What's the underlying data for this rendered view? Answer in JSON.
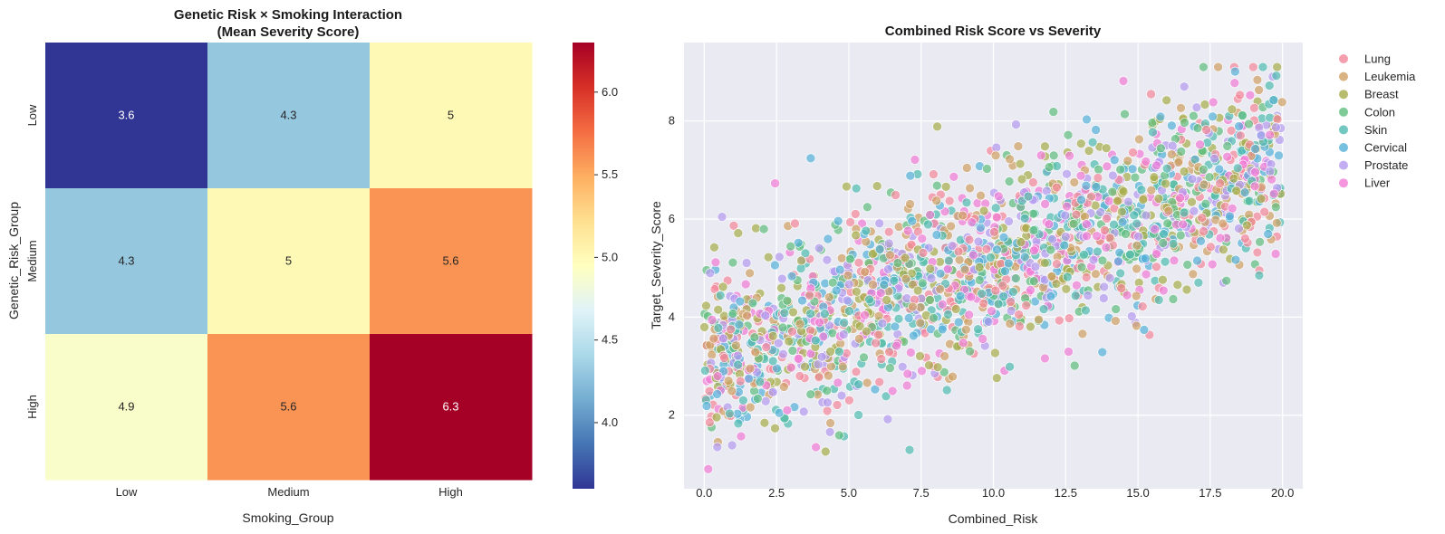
{
  "chart_data": [
    {
      "type": "heatmap",
      "title_line1": "Genetic Risk × Smoking Interaction",
      "title_line2": "(Mean Severity Score)",
      "xlabel": "Smoking_Group",
      "ylabel": "Genetic_Risk_Group",
      "x_categories": [
        "Low",
        "Medium",
        "High"
      ],
      "y_categories": [
        "Low",
        "Medium",
        "High"
      ],
      "values": [
        [
          3.6,
          4.3,
          5.0
        ],
        [
          4.3,
          5.0,
          5.6
        ],
        [
          4.9,
          5.6,
          6.3
        ]
      ],
      "annotations": [
        [
          "3.6",
          "4.3",
          "5"
        ],
        [
          "4.3",
          "5",
          "5.6"
        ],
        [
          "4.9",
          "5.6",
          "6.3"
        ]
      ],
      "colormap": "RdYlBu_r",
      "colorbar_range": [
        3.6,
        6.3
      ],
      "colorbar_ticks": [
        "4.0",
        "4.5",
        "5.0",
        "5.5",
        "6.0"
      ]
    },
    {
      "type": "scatter",
      "title": "Combined Risk Score vs Severity",
      "xlabel": "Combined_Risk",
      "ylabel": "Target_Severity_Score",
      "xlim": [
        -0.7,
        20.7
      ],
      "ylim": [
        0.5,
        9.6
      ],
      "x_ticks": [
        "0.0",
        "2.5",
        "5.0",
        "7.5",
        "10.0",
        "12.5",
        "15.0",
        "17.5",
        "20.0"
      ],
      "y_ticks": [
        "2",
        "4",
        "6",
        "8"
      ],
      "grid": true,
      "legend_position": "outside right",
      "series": [
        {
          "name": "Lung",
          "color": "#f38698"
        },
        {
          "name": "Leukemia",
          "color": "#cfa063"
        },
        {
          "name": "Breast",
          "color": "#a6ad4a"
        },
        {
          "name": "Colon",
          "color": "#5fbe7d"
        },
        {
          "name": "Skin",
          "color": "#4fbab0"
        },
        {
          "name": "Cervical",
          "color": "#54b0d8"
        },
        {
          "name": "Prostate",
          "color": "#b49af0"
        },
        {
          "name": "Liver",
          "color": "#f17ad6"
        }
      ],
      "trend": {
        "intercept": 3.1,
        "slope": 0.2,
        "spread_sd": 0.95
      },
      "approx_points_per_series": 250
    }
  ]
}
